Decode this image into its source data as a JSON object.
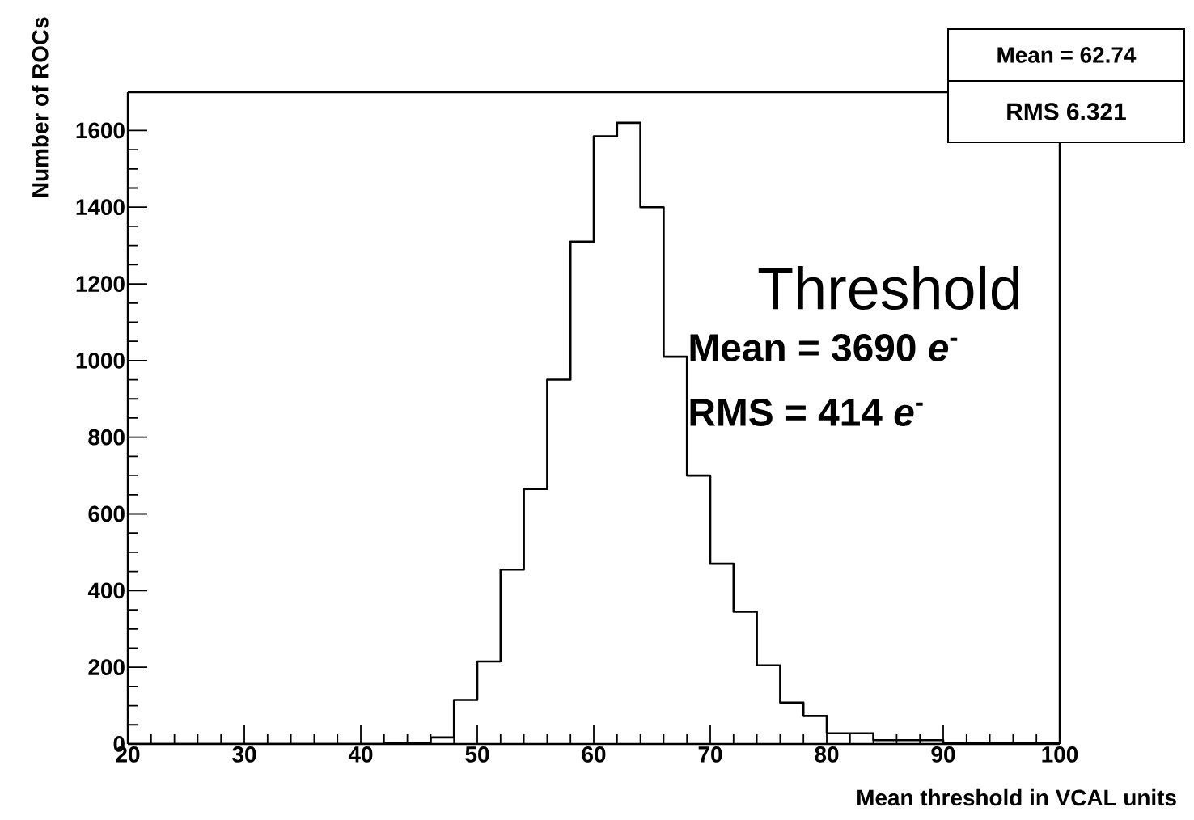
{
  "chart_data": {
    "type": "histogram",
    "xlabel": "Mean threshold in VCAL units",
    "ylabel": "Number of ROCs",
    "bins": [
      20,
      22,
      24,
      26,
      28,
      30,
      32,
      34,
      36,
      38,
      40,
      42,
      44,
      46,
      48,
      50,
      52,
      54,
      56,
      58,
      60,
      62,
      64,
      66,
      68,
      70,
      72,
      74,
      76,
      78,
      80,
      82,
      84,
      86,
      88,
      90,
      92,
      94,
      96,
      98,
      100
    ],
    "values": [
      0,
      0,
      0,
      0,
      0,
      0,
      0,
      0,
      0,
      0,
      0,
      3,
      3,
      17,
      115,
      215,
      455,
      665,
      950,
      1310,
      1585,
      1620,
      1400,
      1010,
      700,
      470,
      345,
      205,
      108,
      73,
      28,
      28,
      10,
      10,
      10,
      3,
      3,
      3,
      3,
      3
    ],
    "color": "#000000",
    "xlim": [
      20,
      100
    ],
    "xticks": [
      20,
      30,
      40,
      50,
      60,
      70,
      80,
      90,
      100
    ],
    "ylim": [
      0,
      1700
    ],
    "yticks": [
      0,
      200,
      400,
      600,
      800,
      1000,
      1200,
      1400,
      1600
    ],
    "grid": false,
    "annotations": [
      "Mean  =  62.74",
      "RMS    6.321",
      "Threshold",
      "Mean = 3690 *e*$^{-}$",
      "RMS = 414 *e*$^{-}$"
    ]
  }
}
